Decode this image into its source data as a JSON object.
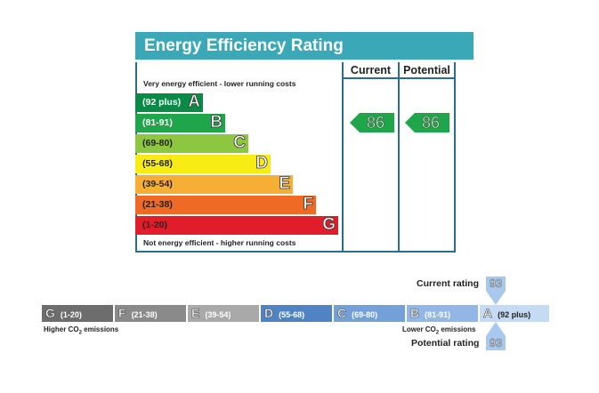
{
  "energy_efficiency": {
    "title": "Energy Efficiency Rating",
    "col_current": "Current",
    "col_potential": "Potential",
    "top_note": "Very energy efficient - lower running costs",
    "bottom_note": "Not energy efficient - higher running costs",
    "bands": [
      {
        "range": "(92 plus)",
        "letter": "A",
        "color": "#0a8a45"
      },
      {
        "range": "(81-91)",
        "letter": "B",
        "color": "#1fa54a"
      },
      {
        "range": "(69-80)",
        "letter": "C",
        "color": "#8dc63f"
      },
      {
        "range": "(55-68)",
        "letter": "D",
        "color": "#f7ec13"
      },
      {
        "range": "(39-54)",
        "letter": "E",
        "color": "#f6ae35"
      },
      {
        "range": "(21-38)",
        "letter": "F",
        "color": "#ee6a25"
      },
      {
        "range": "(1-20)",
        "letter": "G",
        "color": "#e21d2b"
      }
    ],
    "current_value": "86",
    "potential_value": "86",
    "arrow_color": "#1fa54a"
  },
  "environmental": {
    "segments": [
      {
        "letter": "G",
        "range": "(1-20)",
        "color": "#6d6d6d"
      },
      {
        "letter": "F",
        "range": "(21-38)",
        "color": "#8a8a8a"
      },
      {
        "letter": "E",
        "range": "(39-54)",
        "color": "#a9a9a9"
      },
      {
        "letter": "D",
        "range": "(55-68)",
        "color": "#4f83c4"
      },
      {
        "letter": "C",
        "range": "(69-80)",
        "color": "#74a0da"
      },
      {
        "letter": "B",
        "range": "(81-91)",
        "color": "#92b7e6"
      },
      {
        "letter": "A",
        "range": "(92 plus)",
        "color": "#c5dbf3"
      }
    ],
    "left_label_prefix": "Higher CO",
    "left_label_sub": "2",
    "left_label_suffix": " emissions",
    "right_label_prefix": "Lower CO",
    "right_label_sub": "2",
    "right_label_suffix": " emissions",
    "current_label": "Current rating",
    "current_value": "93",
    "potential_label": "Potential rating",
    "potential_value": "93"
  }
}
